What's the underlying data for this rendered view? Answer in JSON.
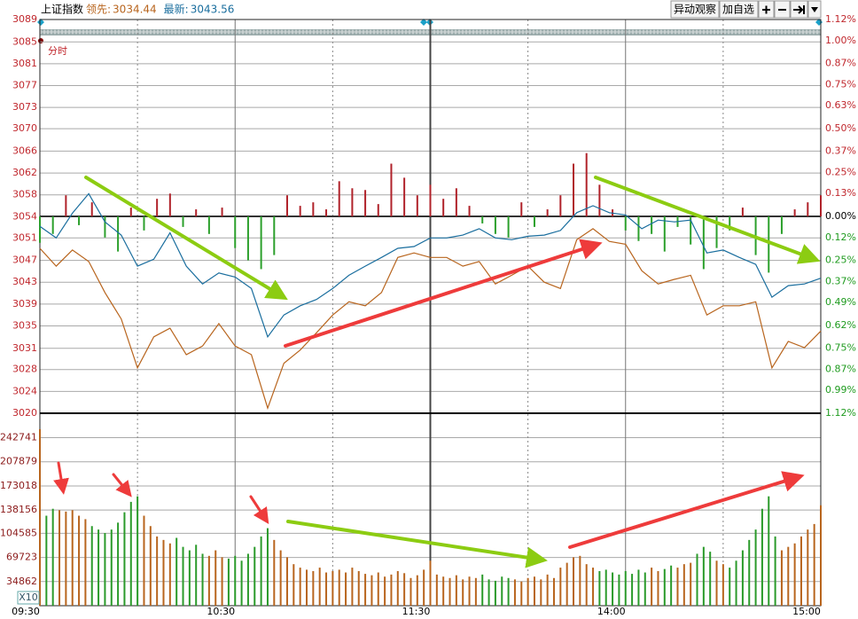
{
  "chart_data": {
    "type": "line",
    "title": "上证指数",
    "panel_label": "分时",
    "volume_scale_label": "X10",
    "buttons": [
      "异动观察",
      "加自选"
    ],
    "x": [
      0,
      5,
      10,
      15,
      20,
      25,
      30,
      35,
      40,
      45,
      50,
      55,
      60,
      65,
      70,
      75,
      80,
      85,
      90,
      95,
      100,
      105,
      110,
      115,
      120,
      125,
      130,
      135,
      140,
      145,
      150,
      155,
      160,
      165,
      170,
      175,
      180,
      185,
      190,
      195,
      200,
      205,
      210,
      215,
      220,
      225,
      230,
      235,
      240
    ],
    "xlim": [
      0,
      240
    ],
    "xticks": [
      {
        "value": 0,
        "label": "09:30"
      },
      {
        "value": 60,
        "label": "10:30"
      },
      {
        "value": 120,
        "label": "11:30"
      },
      {
        "value": 180,
        "label": "14:00"
      },
      {
        "value": 240,
        "label": "15:00"
      }
    ],
    "xminorticks": [
      30,
      90,
      150,
      210
    ],
    "ylim": [
      3020.1,
      3088.6
    ],
    "yticks": [
      {
        "value": 3088.6,
        "label": "3089"
      },
      {
        "value": 3084.7,
        "label": "3085"
      },
      {
        "value": 3080.9,
        "label": "3081"
      },
      {
        "value": 3077.1,
        "label": "3077"
      },
      {
        "value": 3073.3,
        "label": "3073"
      },
      {
        "value": 3069.6,
        "label": "3070"
      },
      {
        "value": 3065.7,
        "label": "3066"
      },
      {
        "value": 3061.9,
        "label": "3062"
      },
      {
        "value": 3058.1,
        "label": "3058"
      },
      {
        "value": 3054.3,
        "label": "3054"
      },
      {
        "value": 3050.6,
        "label": "3051"
      },
      {
        "value": 3046.7,
        "label": "3047"
      },
      {
        "value": 3042.9,
        "label": "3043"
      },
      {
        "value": 3039.1,
        "label": "3039"
      },
      {
        "value": 3035.3,
        "label": "3035"
      },
      {
        "value": 3031.4,
        "label": "3031"
      },
      {
        "value": 3027.7,
        "label": "3028"
      },
      {
        "value": 3023.9,
        "label": "3024"
      },
      {
        "value": 3020.1,
        "label": "3020"
      }
    ],
    "y2lim": [
      -1.12,
      1.12
    ],
    "y2ticks": [
      {
        "value": 1.12,
        "label": "1.12%"
      },
      {
        "value": 1.0,
        "label": "1.00%"
      },
      {
        "value": 0.87,
        "label": "0.87%"
      },
      {
        "value": 0.75,
        "label": "0.75%"
      },
      {
        "value": 0.63,
        "label": "0.63%"
      },
      {
        "value": 0.5,
        "label": "0.50%"
      },
      {
        "value": 0.37,
        "label": "0.37%"
      },
      {
        "value": 0.25,
        "label": "0.25%"
      },
      {
        "value": 0.13,
        "label": "0.13%"
      },
      {
        "value": 0,
        "label": "0.00%"
      },
      {
        "value": -0.12,
        "label": "0.12%"
      },
      {
        "value": -0.25,
        "label": "0.25%"
      },
      {
        "value": -0.37,
        "label": "0.37%"
      },
      {
        "value": -0.49,
        "label": "0.49%"
      },
      {
        "value": -0.62,
        "label": "0.62%"
      },
      {
        "value": -0.75,
        "label": "0.75%"
      },
      {
        "value": -0.87,
        "label": "0.87%"
      },
      {
        "value": -0.99,
        "label": "0.99%"
      },
      {
        "value": -1.12,
        "label": "1.12%"
      }
    ],
    "grid": true,
    "series": [
      {
        "name": "领先:",
        "last": 3034.44,
        "color": "#b8651e",
        "values": [
          3048.8,
          3045.7,
          3048.5,
          3046.5,
          3041.1,
          3036.5,
          3028.0,
          3033.4,
          3034.9,
          3030.3,
          3031.8,
          3035.7,
          3031.8,
          3030.3,
          3021.0,
          3028.8,
          3031.1,
          3034.1,
          3037.2,
          3039.5,
          3038.8,
          3041.1,
          3047.2,
          3048.0,
          3047.2,
          3047.2,
          3045.7,
          3046.5,
          3042.6,
          3044.1,
          3045.7,
          3042.9,
          3041.8,
          3050.3,
          3052.2,
          3050.0,
          3049.5,
          3044.9,
          3042.6,
          3043.4,
          3044.1,
          3037.2,
          3038.8,
          3038.8,
          3039.5,
          3028.0,
          3032.6,
          3031.5,
          3034.4
        ]
      },
      {
        "name": "最新:",
        "last": 3043.56,
        "color": "#1a6e9e",
        "values": [
          3052.6,
          3050.6,
          3054.9,
          3058.3,
          3053.4,
          3051.1,
          3045.7,
          3046.9,
          3051.5,
          3045.7,
          3042.6,
          3044.5,
          3043.8,
          3041.8,
          3033.4,
          3037.2,
          3038.8,
          3039.9,
          3041.8,
          3044.1,
          3045.7,
          3047.2,
          3048.8,
          3049.1,
          3050.6,
          3050.6,
          3051.1,
          3052.2,
          3050.6,
          3050.3,
          3050.9,
          3051.1,
          3051.9,
          3055.0,
          3056.2,
          3055.0,
          3054.6,
          3052.2,
          3053.7,
          3053.4,
          3053.7,
          3048.0,
          3048.5,
          3047.2,
          3046.0,
          3040.3,
          3042.3,
          3042.6,
          3043.6
        ]
      }
    ],
    "breadth": {
      "axis": "y2",
      "color": "#b0222a",
      "negative_color": "#2ca02c",
      "x": [
        0,
        4,
        8,
        12,
        16,
        20,
        24,
        28,
        32,
        36,
        40,
        44,
        48,
        52,
        56,
        60,
        64,
        68,
        72,
        76,
        80,
        84,
        88,
        92,
        96,
        100,
        104,
        108,
        112,
        116,
        120,
        124,
        128,
        132,
        136,
        140,
        144,
        148,
        152,
        156,
        160,
        164,
        168,
        172,
        176,
        180,
        184,
        188,
        192,
        196,
        200,
        204,
        208,
        212,
        216,
        220,
        224,
        228,
        232,
        236,
        240
      ],
      "values": [
        -0.15,
        -0.1,
        0.12,
        -0.05,
        0.08,
        -0.12,
        -0.2,
        0.05,
        -0.08,
        0.1,
        0.13,
        -0.06,
        0.04,
        -0.1,
        0.05,
        -0.18,
        -0.25,
        -0.3,
        -0.22,
        0.12,
        0.06,
        0.08,
        0.04,
        0.2,
        0.16,
        0.15,
        0.07,
        0.3,
        0.22,
        0.12,
        0.18,
        0.1,
        0.16,
        0.06,
        -0.04,
        -0.1,
        -0.12,
        0.08,
        -0.06,
        0.04,
        0.12,
        0.3,
        0.36,
        0.18,
        0.04,
        -0.08,
        -0.14,
        -0.1,
        -0.2,
        -0.06,
        -0.16,
        -0.3,
        -0.18,
        -0.08,
        0.05,
        -0.22,
        -0.32,
        -0.1,
        0.04,
        0.08,
        0.12
      ]
    },
    "volume": {
      "color": "#b8651e",
      "negative_color": "#2a9a2a",
      "ylim": [
        0,
        278000
      ],
      "yticks": [
        242741,
        207879,
        173018,
        138156,
        104585,
        69723,
        34862
      ],
      "x": [
        0,
        2,
        4,
        6,
        8,
        10,
        12,
        14,
        16,
        18,
        20,
        22,
        24,
        26,
        28,
        30,
        32,
        34,
        36,
        38,
        40,
        42,
        44,
        46,
        48,
        50,
        52,
        54,
        56,
        58,
        60,
        62,
        64,
        66,
        68,
        70,
        72,
        74,
        76,
        78,
        80,
        82,
        84,
        86,
        88,
        90,
        92,
        94,
        96,
        98,
        100,
        102,
        104,
        106,
        108,
        110,
        112,
        114,
        116,
        118,
        120,
        122,
        124,
        126,
        128,
        130,
        132,
        134,
        136,
        138,
        140,
        142,
        144,
        146,
        148,
        150,
        152,
        154,
        156,
        158,
        160,
        162,
        164,
        166,
        168,
        170,
        172,
        174,
        176,
        178,
        180,
        182,
        184,
        186,
        188,
        190,
        192,
        194,
        196,
        198,
        200,
        202,
        204,
        206,
        208,
        210,
        212,
        214,
        216,
        218,
        220,
        222,
        224,
        226,
        228,
        230,
        232,
        234,
        236,
        238,
        240
      ],
      "values": [
        255000,
        130000,
        140000,
        138000,
        136000,
        138000,
        130000,
        125000,
        115000,
        110000,
        105000,
        110000,
        120000,
        135000,
        150000,
        158000,
        130000,
        115000,
        100000,
        95000,
        90000,
        98000,
        85000,
        80000,
        88000,
        75000,
        72000,
        80000,
        70000,
        68000,
        72000,
        65000,
        75000,
        85000,
        100000,
        112000,
        95000,
        80000,
        70000,
        60000,
        55000,
        52000,
        50000,
        55000,
        48000,
        50000,
        52000,
        48000,
        55000,
        50000,
        46000,
        44000,
        48000,
        42000,
        45000,
        50000,
        47000,
        40000,
        44000,
        52000,
        65000,
        45000,
        42000,
        40000,
        44000,
        38000,
        42000,
        40000,
        45000,
        38000,
        36000,
        42000,
        40000,
        38000,
        35000,
        40000,
        42000,
        38000,
        45000,
        40000,
        55000,
        62000,
        70000,
        72000,
        60000,
        55000,
        50000,
        52000,
        48000,
        45000,
        50000,
        46000,
        52000,
        48000,
        55000,
        50000,
        53000,
        58000,
        55000,
        60000,
        62000,
        75000,
        85000,
        78000,
        65000,
        60000,
        55000,
        65000,
        80000,
        95000,
        110000,
        140000,
        158000,
        100000,
        80000,
        85000,
        90000,
        100000,
        110000,
        118000,
        145000
      ]
    }
  }
}
